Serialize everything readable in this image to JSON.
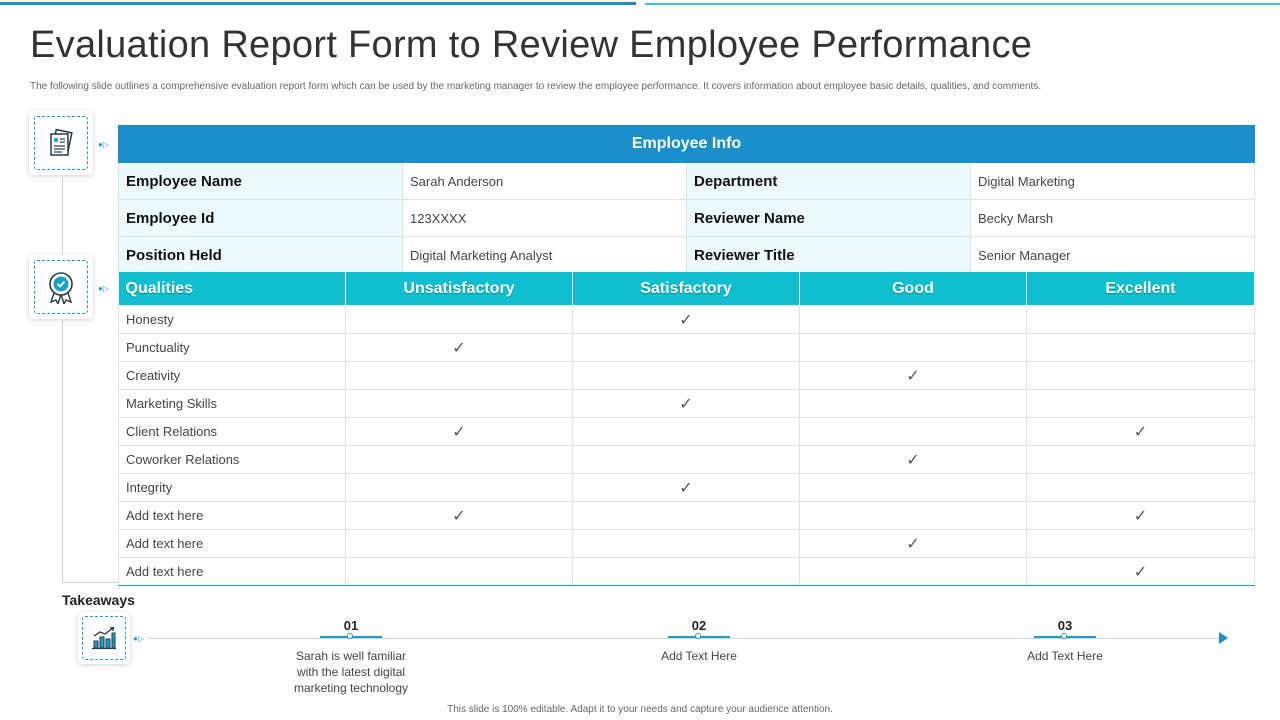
{
  "title": "Evaluation Report Form to Review Employee Performance",
  "subtitle": "The following slide outlines a comprehensive evaluation report form which can be used by the marketing manager to review the employee performance. It covers information about employee basic details, qualities, and comments.",
  "icons": {
    "doc": "document-icon",
    "badge": "award-badge-icon",
    "chart": "bar-chart-icon"
  },
  "arrow_marker": "●▷",
  "employee_info": {
    "header": "Employee Info",
    "rows": [
      {
        "label1": "Employee Name",
        "value1": "Sarah Anderson",
        "label2": "Department",
        "value2": "Digital Marketing"
      },
      {
        "label1": "Employee Id",
        "value1": "123XXXX",
        "label2": "Reviewer Name",
        "value2": "Becky Marsh"
      },
      {
        "label1": "Position Held",
        "value1": "Digital Marketing Analyst",
        "label2": "Reviewer Title",
        "value2": "Senior Manager"
      }
    ]
  },
  "qualities": {
    "headers": [
      "Qualities",
      "Unsatisfactory",
      "Satisfactory",
      "Good",
      "Excellent"
    ],
    "check_glyph": "✓",
    "rows": [
      {
        "name": "Honesty",
        "checks": [
          false,
          true,
          false,
          false
        ]
      },
      {
        "name": "Punctuality",
        "checks": [
          true,
          false,
          false,
          false
        ]
      },
      {
        "name": "Creativity",
        "checks": [
          false,
          false,
          true,
          false
        ]
      },
      {
        "name": "Marketing Skills",
        "checks": [
          false,
          true,
          false,
          false
        ]
      },
      {
        "name": "Client Relations",
        "checks": [
          true,
          false,
          false,
          true
        ]
      },
      {
        "name": "Coworker Relations",
        "checks": [
          false,
          false,
          true,
          false
        ]
      },
      {
        "name": "Integrity",
        "checks": [
          false,
          true,
          false,
          false
        ]
      },
      {
        "name": "Add text here",
        "checks": [
          true,
          false,
          false,
          true
        ]
      },
      {
        "name": "Add text here",
        "checks": [
          false,
          false,
          true,
          false
        ]
      },
      {
        "name": "Add text here",
        "checks": [
          false,
          false,
          false,
          true
        ]
      }
    ]
  },
  "takeaways": {
    "label": "Takeaways",
    "steps": [
      {
        "num": "01",
        "text": "Sarah is well familiar with the latest digital marketing technology"
      },
      {
        "num": "02",
        "text": "Add Text Here"
      },
      {
        "num": "03",
        "text": "Add Text Here"
      }
    ]
  },
  "footer": "This slide is 100% editable. Adapt it to your needs and capture your audience attention.",
  "colors": {
    "primary": "#1a8fcb",
    "accent": "#0fbfcf",
    "label_bg": "#edfafd"
  }
}
